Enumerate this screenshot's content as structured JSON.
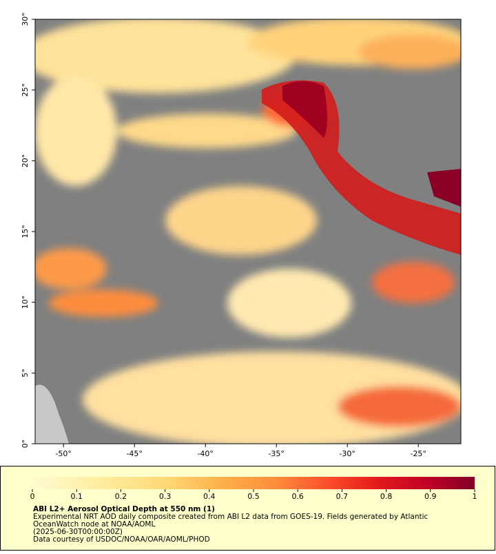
{
  "map": {
    "xlim": [
      -52,
      -22
    ],
    "ylim": [
      0,
      30
    ],
    "lat_ticks": [
      {
        "value": 0,
        "label": "0°"
      },
      {
        "value": 5,
        "label": "5°"
      },
      {
        "value": 10,
        "label": "10°"
      },
      {
        "value": 15,
        "label": "15°"
      },
      {
        "value": 20,
        "label": "20°"
      },
      {
        "value": 25,
        "label": "25°"
      },
      {
        "value": 30,
        "label": "30°"
      }
    ],
    "lon_ticks": [
      {
        "value": -50,
        "label": "-50°"
      },
      {
        "value": -45,
        "label": "-45°"
      },
      {
        "value": -40,
        "label": "-40°"
      },
      {
        "value": -35,
        "label": "-35°"
      },
      {
        "value": -30,
        "label": "-30°"
      },
      {
        "value": -25,
        "label": "-25°"
      }
    ]
  },
  "colorbar": {
    "lim": [
      0,
      1
    ],
    "ticks": [
      0,
      0.1,
      0.2,
      0.3,
      0.4,
      0.5,
      0.6,
      0.7,
      0.8,
      0.9,
      1
    ]
  },
  "caption": {
    "title": "ABI L2+ Aerosol Optical Depth at 550 nm (1)",
    "lines": [
      "Experimental NRT AOD daily composite created from ABI L2 data from GOES-19. Fields generated by Atlantic",
      "OceanWatch node at NOAA/AOML",
      "(2025-06-30T00:00:00Z)",
      "Data courtesy of USDOC/NOAA/OAR/AOML/PHOD"
    ]
  }
}
